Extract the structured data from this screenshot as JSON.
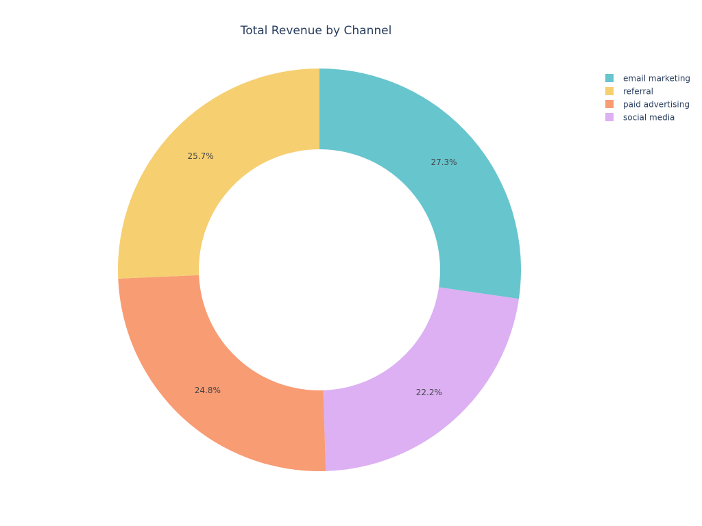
{
  "chart_data": {
    "type": "pie",
    "hole": true,
    "title": "Total Revenue by Channel",
    "start_angle_deg": 90,
    "direction": "clockwise",
    "slices": [
      {
        "label": "email marketing",
        "value": 27.3,
        "text": "27.3%",
        "color": "#67c5cd"
      },
      {
        "label": "social media",
        "value": 22.2,
        "text": "22.2%",
        "color": "#dcb0f2"
      },
      {
        "label": "paid advertising",
        "value": 24.8,
        "text": "24.8%",
        "color": "#f89c74"
      },
      {
        "label": "referral",
        "value": 25.7,
        "text": "25.7%",
        "color": "#f6cf71"
      }
    ],
    "legend": {
      "placement": "top-right",
      "entries": [
        "email marketing",
        "referral",
        "paid advertising",
        "social media"
      ]
    }
  }
}
